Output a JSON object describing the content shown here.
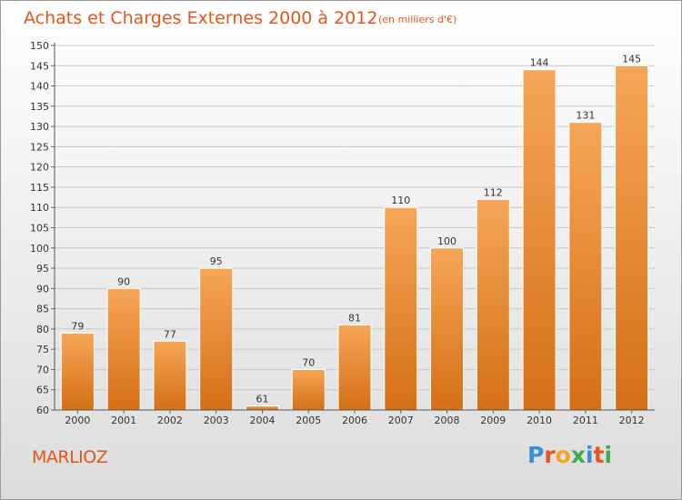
{
  "header": {
    "title": "Achats et Charges Externes 2000 à 2012",
    "unit": "(en milliers d'€)"
  },
  "location": "MARLIOZ",
  "brand": {
    "text": "Proxiti",
    "colors": [
      "#3a8fd6",
      "#e4561a",
      "#f2a623",
      "#3ab04a",
      "#3a8fd6",
      "#e4561a",
      "#3ab04a"
    ]
  },
  "colors": {
    "bar_top": "#f6a657",
    "bar_bottom": "#d46f16",
    "bar_stroke": "#ffffff",
    "grid": "#c8c8c8",
    "title": "#e4561a"
  },
  "chart_data": {
    "type": "bar",
    "title": "Achats et Charges Externes 2000 à 2012",
    "subtitle": "(en milliers d'€)",
    "xlabel": "",
    "ylabel": "",
    "categories": [
      "2000",
      "2001",
      "2002",
      "2003",
      "2004",
      "2005",
      "2006",
      "2007",
      "2008",
      "2009",
      "2010",
      "2011",
      "2012"
    ],
    "values": [
      79,
      90,
      77,
      95,
      61,
      70,
      81,
      110,
      100,
      112,
      144,
      131,
      145
    ],
    "ylim": [
      60,
      150
    ],
    "yticks": [
      60,
      65,
      70,
      75,
      80,
      85,
      90,
      95,
      100,
      105,
      110,
      115,
      120,
      125,
      130,
      135,
      140,
      145,
      150
    ],
    "grid": true,
    "data_labels": true
  }
}
